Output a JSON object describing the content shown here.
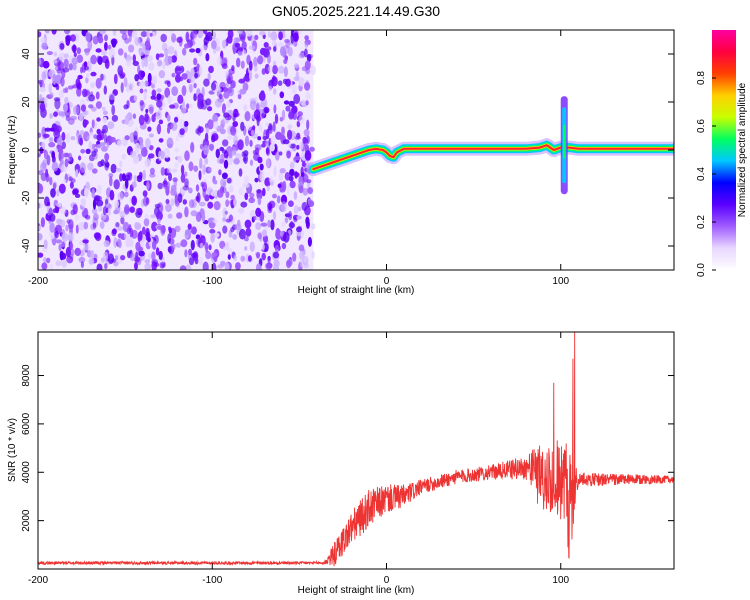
{
  "title": "GN05.2025.221.14.49.G30",
  "chart_data": [
    {
      "type": "heatmap",
      "xlabel": "Height of straight line (km)",
      "ylabel": "Frequency (Hz)",
      "xlim": [
        -200,
        165
      ],
      "ylim": [
        -50,
        50
      ],
      "xticks": [
        -200,
        -100,
        0,
        100
      ],
      "yticks": [
        -40,
        -20,
        0,
        20,
        40
      ],
      "colorbar": {
        "label": "Normalized spectral amplitude",
        "range": [
          0,
          1
        ],
        "ticks": [
          0.0,
          0.2,
          0.4,
          0.6,
          0.8
        ],
        "tick_labels": [
          "0.0",
          "0.2",
          "0.4",
          "0.6",
          "0.8"
        ],
        "colors": [
          "#ffffff",
          "#e8d6ff",
          "#a05cff",
          "#5a00ff",
          "#0000ff",
          "#00c8ff",
          "#00ff60",
          "#c8ff00",
          "#ffd000",
          "#ff4000",
          "#ff0040",
          "#ff00a0"
        ]
      },
      "noise_region": {
        "x_range": [
          -200,
          -42
        ],
        "f_range": [
          -50,
          50
        ],
        "level": 0.05
      },
      "ridge": [
        [
          -42,
          -8
        ],
        [
          -38,
          -7
        ],
        [
          -34,
          -6
        ],
        [
          -30,
          -5
        ],
        [
          -26,
          -4
        ],
        [
          -22,
          -3
        ],
        [
          -18,
          -2
        ],
        [
          -14,
          -1
        ],
        [
          -10,
          0
        ],
        [
          -6,
          0.5
        ],
        [
          -2,
          0
        ],
        [
          0,
          -1
        ],
        [
          2,
          -2.5
        ],
        [
          4,
          -3
        ],
        [
          6,
          -1
        ],
        [
          10,
          0.5
        ],
        [
          20,
          0.5
        ],
        [
          40,
          0.5
        ],
        [
          60,
          0.5
        ],
        [
          80,
          0.5
        ],
        [
          88,
          1
        ],
        [
          92,
          2
        ],
        [
          96,
          0
        ],
        [
          100,
          1
        ],
        [
          102,
          1
        ],
        [
          105,
          1
        ],
        [
          110,
          0.5
        ],
        [
          130,
          0.5
        ],
        [
          165,
          0.5
        ]
      ],
      "spike": {
        "x": 102,
        "f_range": [
          -17,
          21
        ]
      }
    },
    {
      "type": "line",
      "xlabel": "Height of straight line (km)",
      "ylabel": "SNR (10 * v/v)",
      "xlim": [
        -200,
        165
      ],
      "ylim": [
        0,
        9800
      ],
      "xticks": [
        -200,
        -100,
        0,
        100
      ],
      "yticks": [
        2000,
        4000,
        6000,
        8000
      ],
      "color": "#ee3333",
      "envelope": [
        {
          "x": -200,
          "base": 250,
          "jitter": 60
        },
        {
          "x": -36,
          "base": 250,
          "jitter": 60
        },
        {
          "x": -30,
          "base": 600,
          "jitter": 500
        },
        {
          "x": -20,
          "base": 1700,
          "jitter": 700
        },
        {
          "x": -10,
          "base": 2500,
          "jitter": 800
        },
        {
          "x": 0,
          "base": 2900,
          "jitter": 600
        },
        {
          "x": 10,
          "base": 3000,
          "jitter": 500
        },
        {
          "x": 20,
          "base": 3400,
          "jitter": 300
        },
        {
          "x": 40,
          "base": 3800,
          "jitter": 300
        },
        {
          "x": 60,
          "base": 4000,
          "jitter": 300
        },
        {
          "x": 80,
          "base": 4200,
          "jitter": 500
        },
        {
          "x": 90,
          "base": 4100,
          "jitter": 1200
        },
        {
          "x": 100,
          "base": 4000,
          "jitter": 1500
        },
        {
          "x": 105,
          "base": 3200,
          "jitter": 2000
        },
        {
          "x": 110,
          "base": 3700,
          "jitter": 300
        },
        {
          "x": 165,
          "base": 3700,
          "jitter": 150
        }
      ],
      "peaks": [
        {
          "x": 108,
          "y": 9800
        },
        {
          "x": 107,
          "y": 8700
        },
        {
          "x": 96,
          "y": 7700
        }
      ]
    }
  ]
}
